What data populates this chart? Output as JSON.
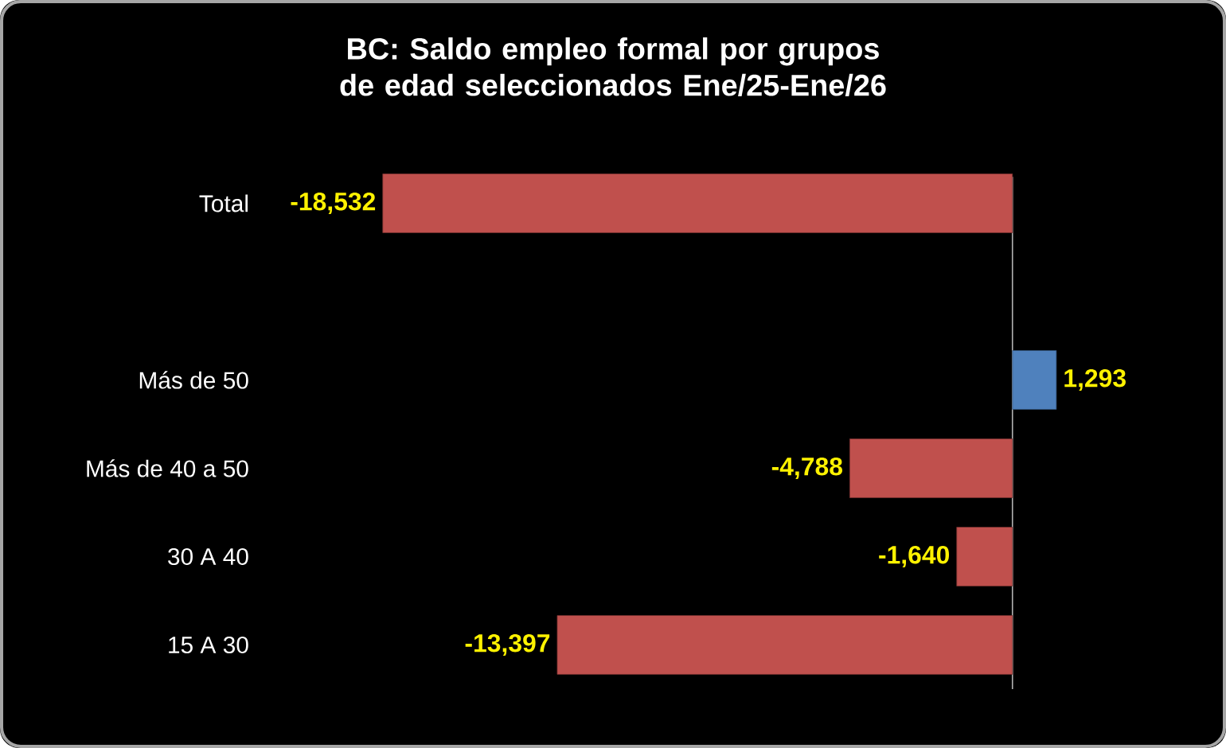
{
  "chart_data": {
    "type": "bar",
    "orientation": "horizontal",
    "title": "BC: Saldo empleo formal por grupos de edad seleccionados Ene/25-Ene/26",
    "categories": [
      "Total",
      null,
      "Más de 50",
      "Más de 40 a 50",
      "30 A 40",
      "15 A 30"
    ],
    "values": [
      -18532,
      null,
      1293,
      -4788,
      -1640,
      -13397
    ],
    "colors": [
      "#c0504d",
      null,
      "#4f81bd",
      "#c0504d",
      "#c0504d",
      "#c0504d"
    ],
    "value_labels": [
      "-18,532",
      null,
      "1,293",
      "-4,788",
      "-1,640",
      "-13,397"
    ]
  }
}
